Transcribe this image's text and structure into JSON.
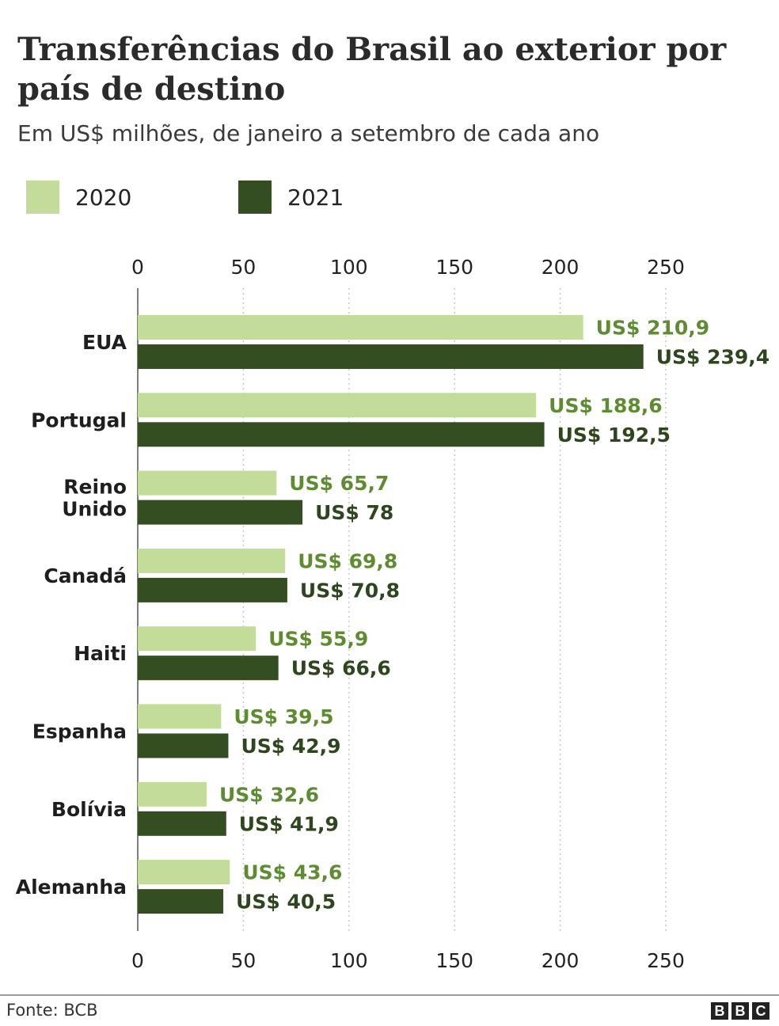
{
  "title": "Transferências do Brasil ao exterior por país de destino",
  "subtitle": "Em US$ milhões, de janeiro a setembro de cada ano",
  "source": "Fonte: BCB",
  "logo": [
    "B",
    "B",
    "C"
  ],
  "colors": {
    "series_2020": "#c3dc9a",
    "series_2021": "#344e21",
    "label_2020": "#5e8c31",
    "label_2021": "#2e461d",
    "grid": "#c8c8c8",
    "axis_text": "#222222"
  },
  "chart_data": {
    "type": "bar",
    "orientation": "horizontal",
    "title": "Transferências do Brasil ao exterior por país de destino",
    "subtitle": "Em US$ milhões, de janeiro a setembro de cada ano",
    "xlabel": "",
    "ylabel": "",
    "xlim": [
      0,
      250
    ],
    "x_ticks": [
      0,
      50,
      100,
      150,
      200,
      250
    ],
    "grid": "vertical dotted",
    "legend_position": "top-left",
    "categories": [
      "EUA",
      "Portugal",
      "Reino Unido",
      "Canadá",
      "Haiti",
      "Espanha",
      "Bolívia",
      "Alemanha"
    ],
    "series": [
      {
        "name": "2020",
        "values": [
          210.9,
          188.6,
          65.7,
          69.8,
          55.9,
          39.5,
          32.6,
          43.6
        ],
        "labels": [
          "US$ 210,9",
          "US$ 188,6",
          "US$ 65,7",
          "US$ 69,8",
          "US$ 55,9",
          "US$ 39,5",
          "US$ 32,6",
          "US$ 43,6"
        ]
      },
      {
        "name": "2021",
        "values": [
          239.4,
          192.5,
          78,
          70.8,
          66.6,
          42.9,
          41.9,
          40.5
        ],
        "labels": [
          "US$ 239,4",
          "US$ 192,5",
          "US$ 78",
          "US$ 70,8",
          "US$ 66,6",
          "US$ 42,9",
          "US$ 41,9",
          "US$ 40,5"
        ]
      }
    ]
  }
}
